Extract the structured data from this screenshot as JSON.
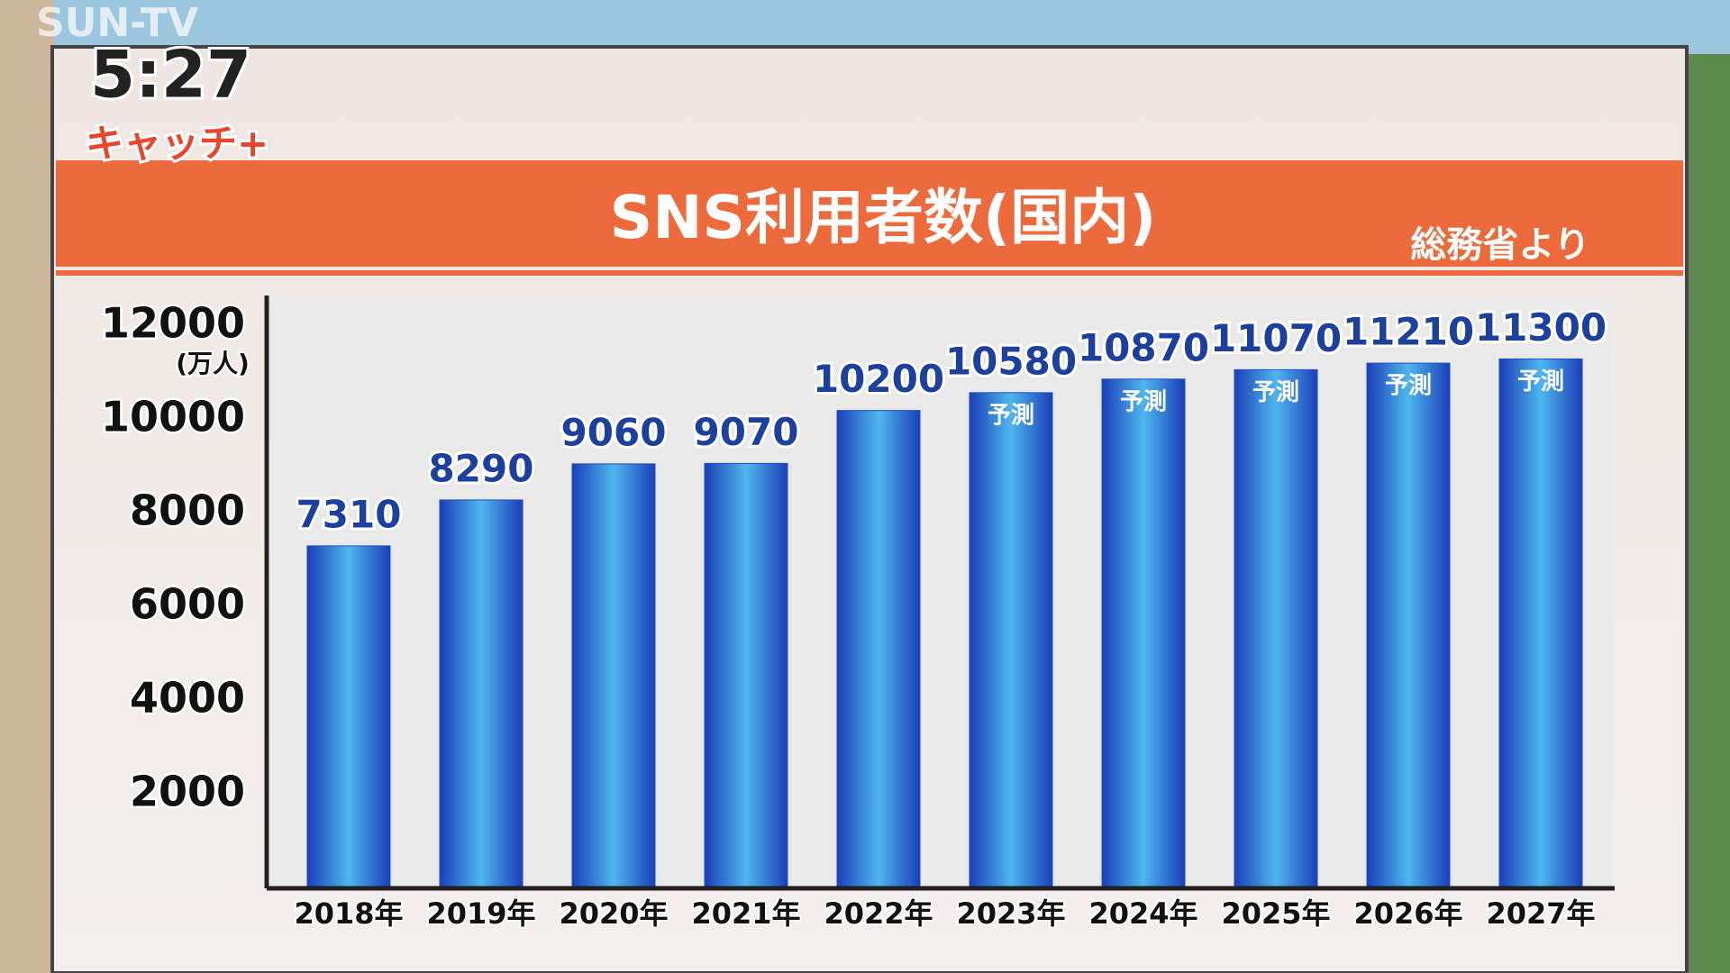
{
  "chart_data": {
    "type": "bar",
    "title": "SNS利用者数(国内)",
    "source": "総務省より",
    "y_unit": "(万人)",
    "categories": [
      "2018年",
      "2019年",
      "2020年",
      "2021年",
      "2022年",
      "2023年",
      "2024年",
      "2025年",
      "2026年",
      "2027年"
    ],
    "values": [
      7310,
      8290,
      9060,
      9070,
      10200,
      10580,
      10870,
      11070,
      11210,
      11300
    ],
    "value_notes": [
      null,
      null,
      null,
      null,
      null,
      "予測",
      "予測",
      "予測",
      "予測",
      "予測"
    ],
    "color": "#1f4fc8",
    "ylim": [
      0,
      12000
    ],
    "yticks": [
      2000,
      4000,
      6000,
      8000,
      10000,
      12000
    ],
    "grid": false
  },
  "overlay": {
    "channel": "SUN-TV",
    "clock": "5:27",
    "program": "キャッチ+"
  }
}
